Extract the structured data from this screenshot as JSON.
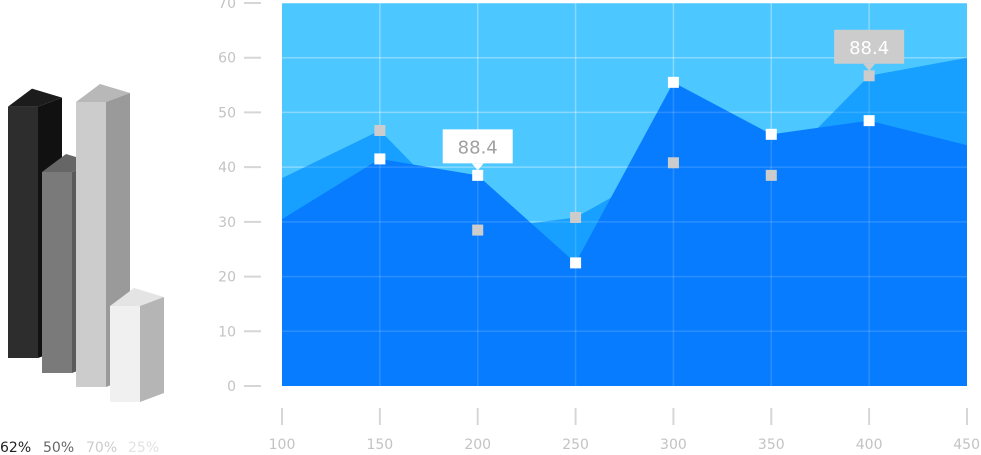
{
  "chart_data": [
    {
      "type": "bar",
      "style": "3d-columns",
      "title": "",
      "categories": [
        "62%",
        "50%",
        "70%",
        "25%"
      ],
      "values": [
        62,
        50,
        70,
        25
      ],
      "colors": {
        "front": [
          "#2d2d2d",
          "#7a7a7a",
          "#cccccc",
          "#f0f0f0"
        ],
        "side": [
          "#111111",
          "#5a5a5a",
          "#9a9a9a",
          "#b5b5b5"
        ],
        "top": [
          "#1c1c1c",
          "#666666",
          "#b8b8b8",
          "#e4e4e4"
        ],
        "label": [
          "#222222",
          "#666666",
          "#cccccc",
          "#e2e2e2"
        ]
      }
    },
    {
      "type": "area",
      "title": "",
      "xlabel": "",
      "ylabel": "",
      "x": [
        100,
        150,
        200,
        250,
        300,
        350,
        400,
        450
      ],
      "xlim": [
        100,
        450
      ],
      "ylim": [
        0,
        70
      ],
      "x_ticks": [
        100,
        150,
        200,
        250,
        300,
        350,
        400,
        450
      ],
      "y_ticks": [
        0,
        10,
        20,
        30,
        40,
        50,
        60,
        70
      ],
      "grid": true,
      "background_color": "#4dc7ff",
      "series": [
        {
          "values": [
            38,
            46.7,
            28.5,
            30.8,
            40.8,
            38.5,
            56.7,
            60
          ],
          "color": "#17a0ff",
          "marker_color": "#cccccc"
        },
        {
          "values": [
            30.5,
            41.5,
            38.5,
            22.5,
            55.5,
            46,
            48.5,
            44
          ],
          "color": "#087cff",
          "marker_color": "#ffffff"
        }
      ],
      "callouts": [
        {
          "x": 200,
          "y": 38.5,
          "text": "88.4",
          "box_color": "#ffffff",
          "text_color": "#a0a0a0"
        },
        {
          "x": 400,
          "y": 56.7,
          "text": "88.4",
          "box_color": "#cccccc",
          "text_color": "#ffffff"
        }
      ]
    }
  ]
}
